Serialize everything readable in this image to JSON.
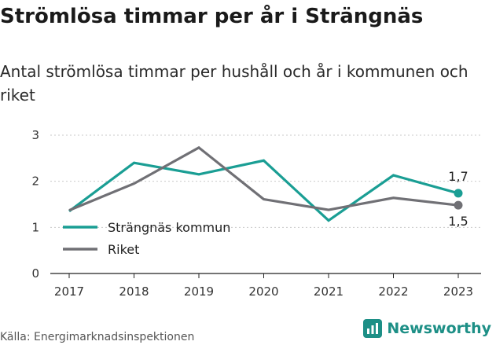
{
  "title": "Strömlösa timmar per år i Strängnäs",
  "subtitle": "Antal strömlösa timmar per hushåll och år i kommunen och riket",
  "source": "Källa: Energimarknadsinspektionen",
  "brand": "Newsworthy",
  "chart_data": {
    "type": "line",
    "x": [
      2017,
      2018,
      2019,
      2020,
      2021,
      2022,
      2023
    ],
    "ylim": [
      0,
      3
    ],
    "yticks": [
      0,
      1,
      2,
      3
    ],
    "legend_position": "left",
    "series": [
      {
        "name": "Strängnäs kommun",
        "color": "#1a9e94",
        "values": [
          1.35,
          2.4,
          2.15,
          2.45,
          1.15,
          2.13,
          1.74
        ],
        "end_label": "1,7"
      },
      {
        "name": "Riket",
        "color": "#707075",
        "values": [
          1.37,
          1.95,
          2.73,
          1.61,
          1.38,
          1.64,
          1.48
        ],
        "end_label": "1,5"
      }
    ]
  }
}
